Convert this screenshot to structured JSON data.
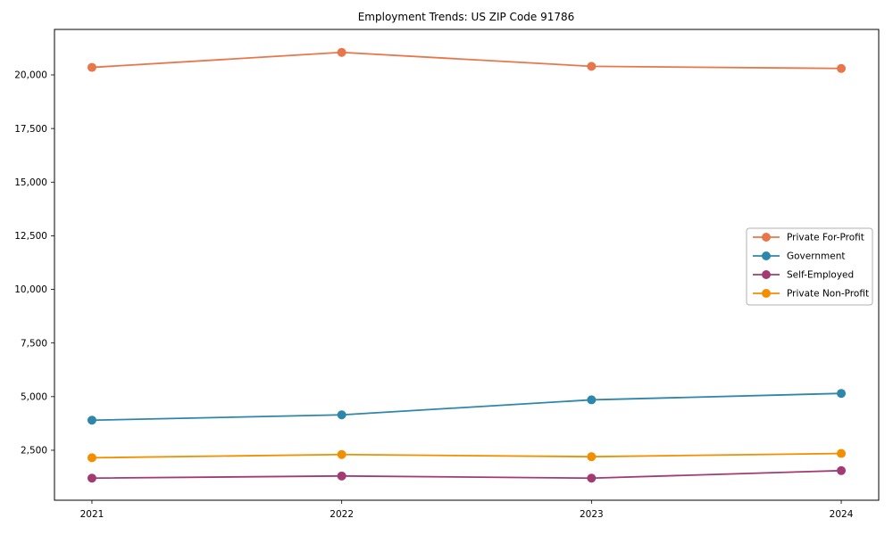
{
  "chart_data": {
    "type": "line",
    "title": "Employment Trends: US ZIP Code 91786",
    "xlabel": "",
    "ylabel": "",
    "x": [
      2021,
      2022,
      2023,
      2024
    ],
    "x_tick_labels": [
      "2021",
      "2022",
      "2023",
      "2024"
    ],
    "y_tick_values": [
      2500,
      5000,
      7500,
      10000,
      12500,
      15000,
      17500,
      20000
    ],
    "y_tick_labels": [
      "2,500",
      "5,000",
      "7,500",
      "10,000",
      "12,500",
      "15,000",
      "17,500",
      "20,000"
    ],
    "xlim": [
      2020.85,
      2024.15
    ],
    "ylim": [
      170,
      22120
    ],
    "grid": false,
    "legend_position": "center right",
    "marker": "circle",
    "series": [
      {
        "name": "Private For-Profit",
        "color": "#E8764B",
        "values": [
          20350,
          21050,
          20400,
          20300
        ]
      },
      {
        "name": "Government",
        "color": "#2E86AB",
        "values": [
          3900,
          4150,
          4850,
          5150
        ]
      },
      {
        "name": "Self-Employed",
        "color": "#A23B72",
        "values": [
          1200,
          1300,
          1200,
          1550
        ]
      },
      {
        "name": "Private Non-Profit",
        "color": "#F18F01",
        "values": [
          2150,
          2300,
          2200,
          2350
        ]
      }
    ]
  }
}
